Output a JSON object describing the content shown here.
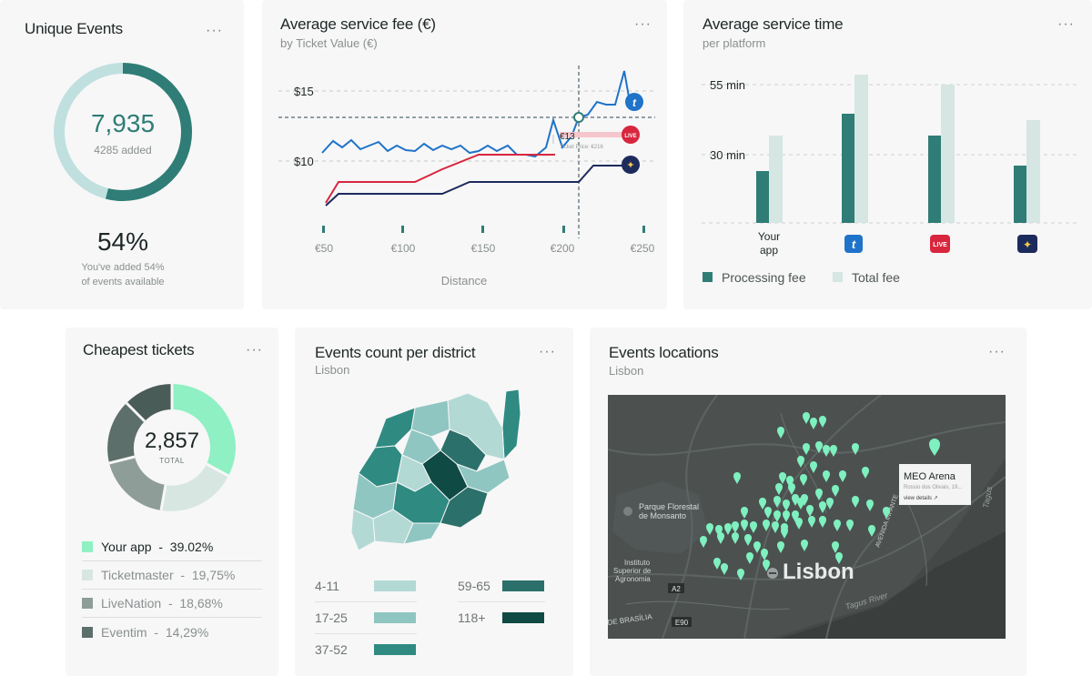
{
  "unique_events": {
    "title": "Unique Events",
    "menu": "···",
    "total": "7,935",
    "added": "4285 added",
    "percent": "54%",
    "caption_line1": "You've added 54%",
    "caption_line2": "of events available",
    "progress_fraction": 0.54,
    "colors": {
      "track": "#bfe0de",
      "fill": "#2f7d76"
    }
  },
  "service_fee": {
    "title": "Average service fee (€)",
    "subtitle": "by Ticket Value (€)",
    "menu": "···",
    "y_ticks": [
      "$15",
      "$10"
    ],
    "x_ticks": [
      "€50",
      "€100",
      "€150",
      "€200",
      "€250"
    ],
    "xlabel": "Distance",
    "tooltip_value": "€13",
    "tooltip_note": "Ticket Price: €216",
    "platform_badges": [
      "t",
      "LIVE",
      "✦"
    ]
  },
  "service_time": {
    "title": "Average service time",
    "subtitle": "per platform",
    "menu": "···",
    "y_ticks": [
      "55 min",
      "30 min"
    ],
    "category_label_line1": "Your",
    "category_label_line2": "app",
    "badges": [
      "t",
      "LIVE",
      "✦"
    ],
    "legend": [
      "Processing fee",
      "Total fee"
    ]
  },
  "cheapest": {
    "title": "Cheapest tickets",
    "menu": "···",
    "total": "2,857",
    "total_label": "TOTAL",
    "legend": [
      {
        "label": "Your app",
        "sep": "-",
        "value": "39.02%",
        "color": "#8ff0c4"
      },
      {
        "label": "Ticketmaster",
        "sep": "-",
        "value": "19,75%",
        "color": "#d7e6e1"
      },
      {
        "label": "LiveNation",
        "sep": "-",
        "value": "18,68%",
        "color": "#8f9d99"
      },
      {
        "label": "Eventim",
        "sep": "-",
        "value": "14,29%",
        "color": "#5d6f6b"
      }
    ]
  },
  "district": {
    "title": "Events count per district",
    "subtitle": "Lisbon",
    "menu": "···",
    "legend": [
      {
        "label": "4-11",
        "color": "#b3d9d5"
      },
      {
        "label": "17-25",
        "color": "#8fc6c1"
      },
      {
        "label": "37-52",
        "color": "#2f8a82"
      },
      {
        "label": "59-65",
        "color": "#2b706a"
      },
      {
        "label": "118+",
        "color": "#0f4a45"
      }
    ]
  },
  "locations": {
    "title": "Events locations",
    "subtitle": "Lisbon",
    "menu": "···",
    "city": "Lisbon",
    "park_line1": "Parque Florestal",
    "park_line2": "de Monsanto",
    "inst_line1": "Instituto",
    "inst_line2": "Superior de",
    "inst_line3": "Agronomia",
    "river": "Tagus River",
    "river_edge": "Tagus",
    "avenue": "AVENIDA INFANTE",
    "road_a2": "A2",
    "road_e90": "E90",
    "brasilia": "DE BRASÍLIA",
    "popup_title": "MEO Arena",
    "popup_address": "Rossio dos Olivais, 19...",
    "popup_link": "view details ↗"
  }
}
